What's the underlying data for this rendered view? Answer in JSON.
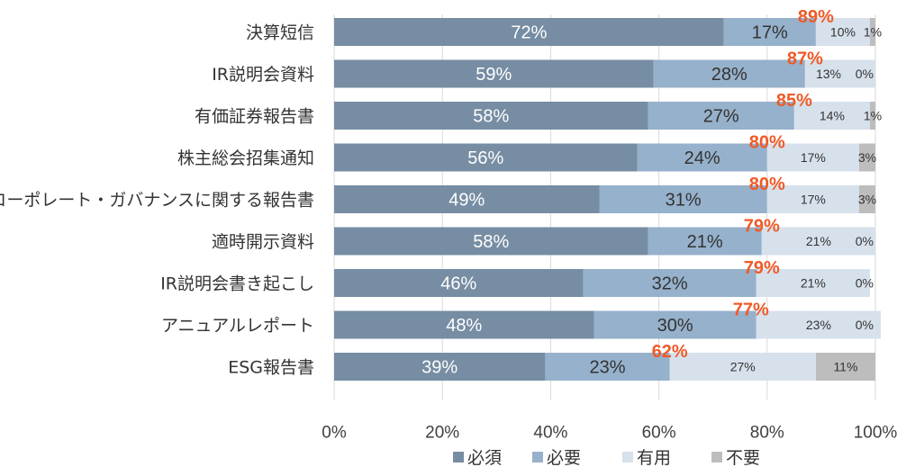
{
  "chart_data": {
    "type": "bar",
    "orientation": "horizontal",
    "stacked": true,
    "categories": [
      "決算短信",
      "IR説明会資料",
      "有価証券報告書",
      "株主総会招集通知",
      "コーポレート・ガバナンスに関する報告書",
      "適時開示資料",
      "IR説明会書き起こし",
      "アニュアルレポート",
      "ESG報告書"
    ],
    "series": [
      {
        "name": "必須",
        "color": "#768da3",
        "label_color": "#ffffff",
        "values": [
          72,
          59,
          58,
          56,
          49,
          58,
          46,
          48,
          39
        ],
        "labels": [
          "72%",
          "59%",
          "58%",
          "56%",
          "49%",
          "58%",
          "46%",
          "48%",
          "39%"
        ]
      },
      {
        "name": "必要",
        "color": "#96b1cb",
        "label_color": "#333333",
        "values": [
          17,
          28,
          27,
          24,
          31,
          21,
          32,
          30,
          23
        ],
        "labels": [
          "17%",
          "28%",
          "27%",
          "24%",
          "31%",
          "21%",
          "32%",
          "30%",
          "23%"
        ]
      },
      {
        "name": "有用",
        "color": "#d7e1ec",
        "label_color": "#333333",
        "values": [
          10,
          13,
          14,
          17,
          17,
          21,
          21,
          23,
          27
        ],
        "labels": [
          "10%",
          "13%",
          "14%",
          "17%",
          "17%",
          "21%",
          "21%",
          "23%",
          "27%"
        ]
      },
      {
        "name": "不要",
        "color": "#bdbdbd",
        "label_color": "#333333",
        "values": [
          1,
          0,
          1,
          3,
          3,
          0,
          0,
          0,
          11
        ],
        "labels": [
          "1%",
          "0%",
          "1%",
          "3%",
          "3%",
          "0%",
          "0%",
          "0%",
          "11%"
        ]
      }
    ],
    "annotations": {
      "color": "#ef5a28",
      "values": [
        89,
        87,
        85,
        80,
        80,
        79,
        79,
        77,
        62
      ],
      "labels": [
        "89%",
        "87%",
        "85%",
        "80%",
        "80%",
        "79%",
        "79%",
        "77%",
        "62%"
      ]
    },
    "xlim": [
      0,
      100
    ],
    "x_ticks": [
      0,
      20,
      40,
      60,
      80,
      100
    ],
    "x_tick_labels": [
      "0%",
      "20%",
      "40%",
      "60%",
      "80%",
      "100%"
    ],
    "grid": true,
    "legend_position": "bottom",
    "title": "",
    "xlabel": "",
    "ylabel": ""
  }
}
